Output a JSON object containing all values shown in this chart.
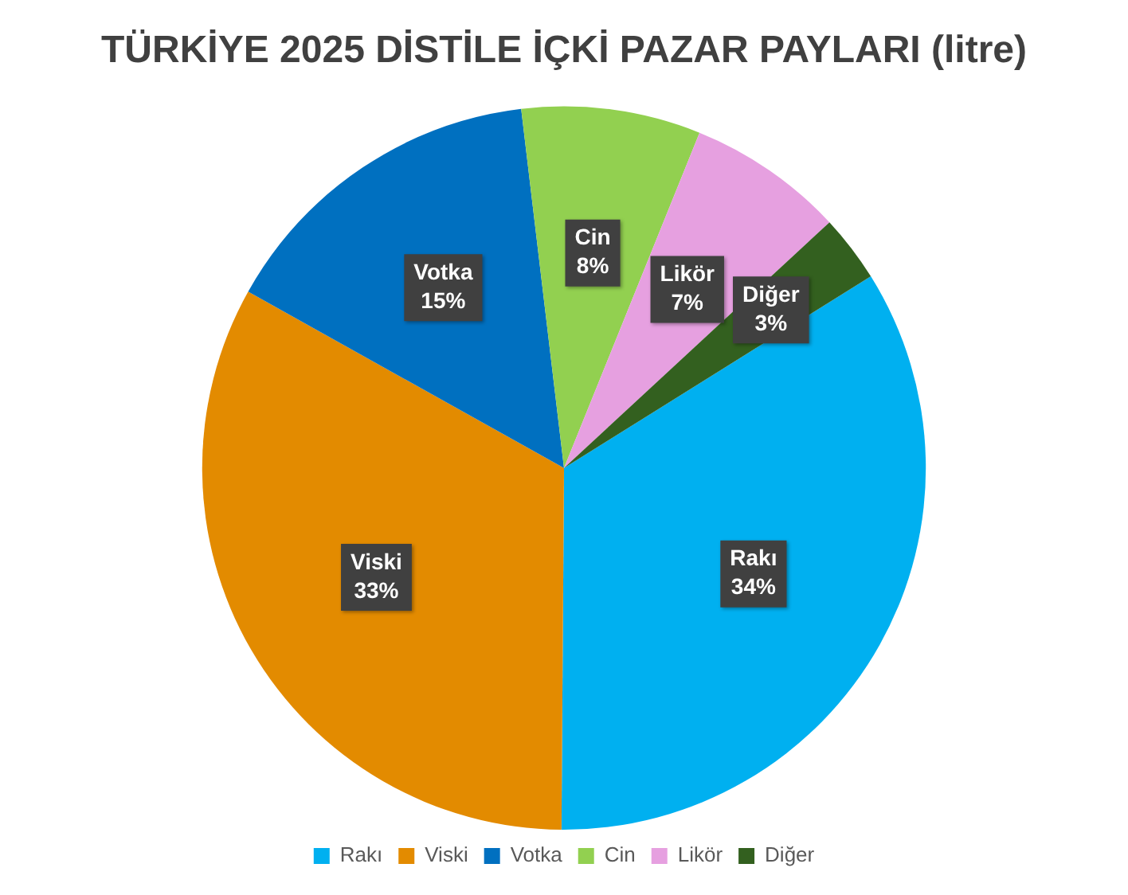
{
  "chart_data": {
    "type": "pie",
    "title": "TÜRKİYE 2025 DİSTİLE İÇKİ PAZAR PAYLARI (litre)",
    "categories": [
      "Rakı",
      "Viski",
      "Votka",
      "Cin",
      "Likör",
      "Diğer"
    ],
    "values": [
      34,
      33,
      15,
      8,
      7,
      3
    ],
    "colors": [
      "#00b0f0",
      "#e38b00",
      "#0070c0",
      "#92d050",
      "#e6a0e0",
      "#33601f"
    ],
    "value_labels": [
      "34%",
      "33%",
      "15%",
      "8%",
      "7%",
      "3%"
    ],
    "legend": "bottom"
  }
}
